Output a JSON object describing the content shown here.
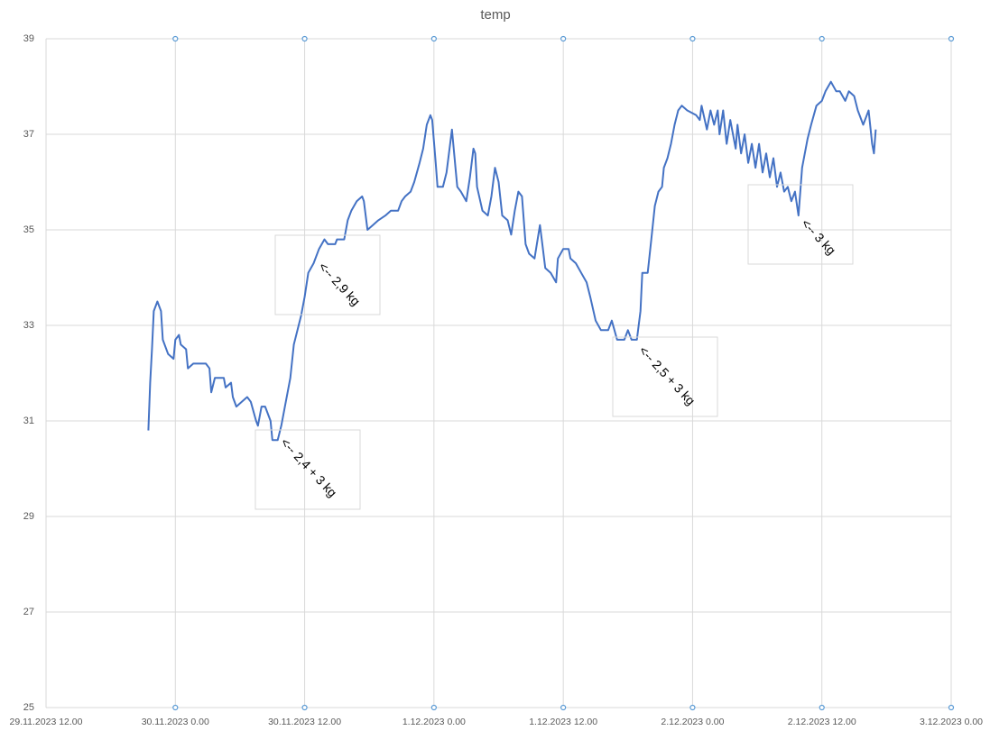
{
  "chart_data": {
    "type": "line",
    "title": "temp",
    "color": "#4472c4",
    "grid": true,
    "x": [
      "29.11.2023 21.30",
      "29.11.2023 21.40",
      "29.11.2023 21.50",
      "29.11.2023 22.00",
      "29.11.2023 22.20",
      "29.11.2023 22.40",
      "29.11.2023 22.50",
      "29.11.2023 23.20",
      "29.11.2023 23.50",
      "30.11.2023 0.00",
      "30.11.2023 0.20",
      "30.11.2023 0.30",
      "30.11.2023 1.00",
      "30.11.2023 1.10",
      "30.11.2023 1.40",
      "30.11.2023 2.50",
      "30.11.2023 3.10",
      "30.11.2023 3.20",
      "30.11.2023 3.40",
      "30.11.2023 4.30",
      "30.11.2023 4.40",
      "30.11.2023 5.10",
      "30.11.2023 5.20",
      "30.11.2023 5.40",
      "30.11.2023 6.10",
      "30.11.2023 6.40",
      "30.11.2023 7.00",
      "30.11.2023 7.30",
      "30.11.2023 7.40",
      "30.11.2023 8.00",
      "30.11.2023 8.20",
      "30.11.2023 8.50",
      "30.11.2023 9.00",
      "30.11.2023 9.30",
      "30.11.2023 9.50",
      "30.11.2023 10.10",
      "30.11.2023 10.40",
      "30.11.2023 11.00",
      "30.11.2023 11.40",
      "30.11.2023 12.00",
      "30.11.2023 12.20",
      "30.11.2023 12.50",
      "30.11.2023 13.20",
      "30.11.2023 13.50",
      "30.11.2023 14.10",
      "30.11.2023 14.50",
      "30.11.2023 15.00",
      "30.11.2023 15.40",
      "30.11.2023 16.00",
      "30.11.2023 16.20",
      "30.11.2023 16.50",
      "30.11.2023 17.20",
      "30.11.2023 17.30",
      "30.11.2023 17.50",
      "30.11.2023 18.20",
      "30.11.2023 18.50",
      "30.11.2023 19.30",
      "30.11.2023 20.00",
      "30.11.2023 20.40",
      "30.11.2023 21.00",
      "30.11.2023 21.20",
      "30.11.2023 21.50",
      "30.11.2023 22.10",
      "30.11.2023 22.40",
      "30.11.2023 23.00",
      "30.11.2023 23.20",
      "30.11.2023 23.40",
      "30.11.2023 23.50",
      "1.12.2023 0.10",
      "1.12.2023 0.20",
      "1.12.2023 0.50",
      "1.12.2023 1.10",
      "1.12.2023 1.30",
      "1.12.2023 1.40",
      "1.12.2023 2.00",
      "1.12.2023 2.10",
      "1.12.2023 2.30",
      "1.12.2023 3.00",
      "1.12.2023 3.20",
      "1.12.2023 3.40",
      "1.12.2023 3.50",
      "1.12.2023 4.00",
      "1.12.2023 4.30",
      "1.12.2023 5.00",
      "1.12.2023 5.20",
      "1.12.2023 5.40",
      "1.12.2023 6.00",
      "1.12.2023 6.20",
      "1.12.2023 6.50",
      "1.12.2023 7.10",
      "1.12.2023 7.30",
      "1.12.2023 7.50",
      "1.12.2023 8.10",
      "1.12.2023 8.30",
      "1.12.2023 8.50",
      "1.12.2023 9.20",
      "1.12.2023 9.50",
      "1.12.2023 10.00",
      "1.12.2023 10.20",
      "1.12.2023 10.50",
      "1.12.2023 11.20",
      "1.12.2023 11.30",
      "1.12.2023 12.00",
      "1.12.2023 12.30",
      "1.12.2023 12.40",
      "1.12.2023 13.10",
      "1.12.2023 13.40",
      "1.12.2023 14.10",
      "1.12.2023 14.30",
      "1.12.2023 15.00",
      "1.12.2023 15.30",
      "1.12.2023 16.10",
      "1.12.2023 16.30",
      "1.12.2023 17.00",
      "1.12.2023 17.40",
      "1.12.2023 18.00",
      "1.12.2023 18.20",
      "1.12.2023 18.50",
      "1.12.2023 19.10",
      "1.12.2023 19.20",
      "1.12.2023 19.50",
      "1.12.2023 20.10",
      "1.12.2023 20.30",
      "1.12.2023 20.50",
      "1.12.2023 21.10",
      "1.12.2023 21.20",
      "1.12.2023 21.40",
      "1.12.2023 22.00",
      "1.12.2023 22.20",
      "1.12.2023 22.40",
      "1.12.2023 23.00",
      "1.12.2023 23.30",
      "2.12.2023 0.20",
      "2.12.2023 0.40",
      "2.12.2023 0.50",
      "2.12.2023 1.20",
      "2.12.2023 1.40",
      "2.12.2023 2.00",
      "2.12.2023 2.20",
      "2.12.2023 2.30",
      "2.12.2023 2.50",
      "2.12.2023 3.10",
      "2.12.2023 3.30",
      "2.12.2023 4.00",
      "2.12.2023 4.10",
      "2.12.2023 4.30",
      "2.12.2023 4.50",
      "2.12.2023 5.10",
      "2.12.2023 5.30",
      "2.12.2023 5.50",
      "2.12.2023 6.10",
      "2.12.2023 6.30",
      "2.12.2023 6.50",
      "2.12.2023 7.10",
      "2.12.2023 7.30",
      "2.12.2023 7.50",
      "2.12.2023 8.10",
      "2.12.2023 8.30",
      "2.12.2023 8.50",
      "2.12.2023 9.10",
      "2.12.2023 9.30",
      "2.12.2023 9.50",
      "2.12.2023 10.10",
      "2.12.2023 10.40",
      "2.12.2023 11.00",
      "2.12.2023 11.30",
      "2.12.2023 12.00",
      "2.12.2023 12.20",
      "2.12.2023 12.50",
      "2.12.2023 13.20",
      "2.12.2023 13.40",
      "2.12.2023 14.10",
      "2.12.2023 14.30",
      "2.12.2023 15.00",
      "2.12.2023 15.20",
      "2.12.2023 15.50",
      "2.12.2023 16.10",
      "2.12.2023 16.20",
      "2.12.2023 16.40",
      "2.12.2023 16.50",
      "2.12.2023 17.00"
    ],
    "values": [
      30.8,
      31.8,
      32.5,
      33.3,
      33.5,
      33.3,
      32.7,
      32.4,
      32.3,
      32.7,
      32.8,
      32.6,
      32.5,
      32.1,
      32.2,
      32.2,
      32.1,
      31.6,
      31.9,
      31.9,
      31.7,
      31.8,
      31.5,
      31.3,
      31.4,
      31.5,
      31.4,
      31.0,
      30.9,
      31.3,
      31.3,
      31.0,
      30.6,
      30.6,
      30.9,
      31.3,
      31.9,
      32.6,
      33.2,
      33.6,
      34.1,
      34.3,
      34.6,
      34.8,
      34.7,
      34.7,
      34.8,
      34.8,
      35.2,
      35.4,
      35.6,
      35.7,
      35.6,
      35.0,
      35.1,
      35.2,
      35.3,
      35.4,
      35.4,
      35.6,
      35.7,
      35.8,
      36.0,
      36.4,
      36.7,
      37.2,
      37.4,
      37.3,
      36.4,
      35.9,
      35.9,
      36.2,
      36.8,
      37.1,
      36.3,
      35.9,
      35.8,
      35.6,
      36.1,
      36.7,
      36.6,
      35.9,
      35.4,
      35.3,
      35.7,
      36.3,
      36.0,
      35.3,
      35.2,
      34.9,
      35.4,
      35.8,
      35.7,
      34.7,
      34.5,
      34.4,
      35.1,
      34.8,
      34.2,
      34.1,
      33.9,
      34.4,
      34.6,
      34.6,
      34.4,
      34.3,
      34.1,
      33.9,
      33.6,
      33.1,
      32.9,
      32.9,
      33.1,
      32.7,
      32.7,
      32.9,
      32.7,
      32.7,
      33.3,
      34.1,
      34.1,
      34.8,
      35.5,
      35.8,
      35.9,
      36.3,
      36.5,
      36.8,
      37.2,
      37.5,
      37.6,
      37.5,
      37.4,
      37.3,
      37.6,
      37.1,
      37.5,
      37.2,
      37.5,
      37.0,
      37.5,
      36.8,
      37.3,
      36.7,
      37.2,
      36.6,
      37.0,
      36.4,
      36.8,
      36.3,
      36.8,
      36.2,
      36.6,
      36.1,
      36.5,
      35.9,
      36.2,
      35.8,
      35.9,
      35.6,
      35.8,
      35.3,
      36.3,
      36.9,
      37.2,
      37.6,
      37.7,
      37.9,
      38.1,
      37.9,
      37.9,
      37.7,
      37.9,
      37.8,
      37.5,
      37.2,
      37.4,
      37.5,
      36.8,
      36.6,
      37.1
    ],
    "xlim": [
      "29.11.2023 12.00",
      "3.12.2023 0.00"
    ],
    "xticks": [
      "29.11.2023 12.00",
      "30.11.2023 0.00",
      "30.11.2023 12.00",
      "1.12.2023 0.00",
      "1.12.2023 12.00",
      "2.12.2023 0.00",
      "2.12.2023 12.00",
      "3.12.2023 0.00"
    ],
    "ylim": [
      25,
      39
    ],
    "yticks": [
      25,
      27,
      29,
      31,
      33,
      35,
      37,
      39
    ],
    "annotations": [
      "<-- 2,4 + 3 kg",
      "<-- 2,9 kg",
      "<-- 2,5 + 3 kg",
      "<-- 3 kg"
    ]
  }
}
